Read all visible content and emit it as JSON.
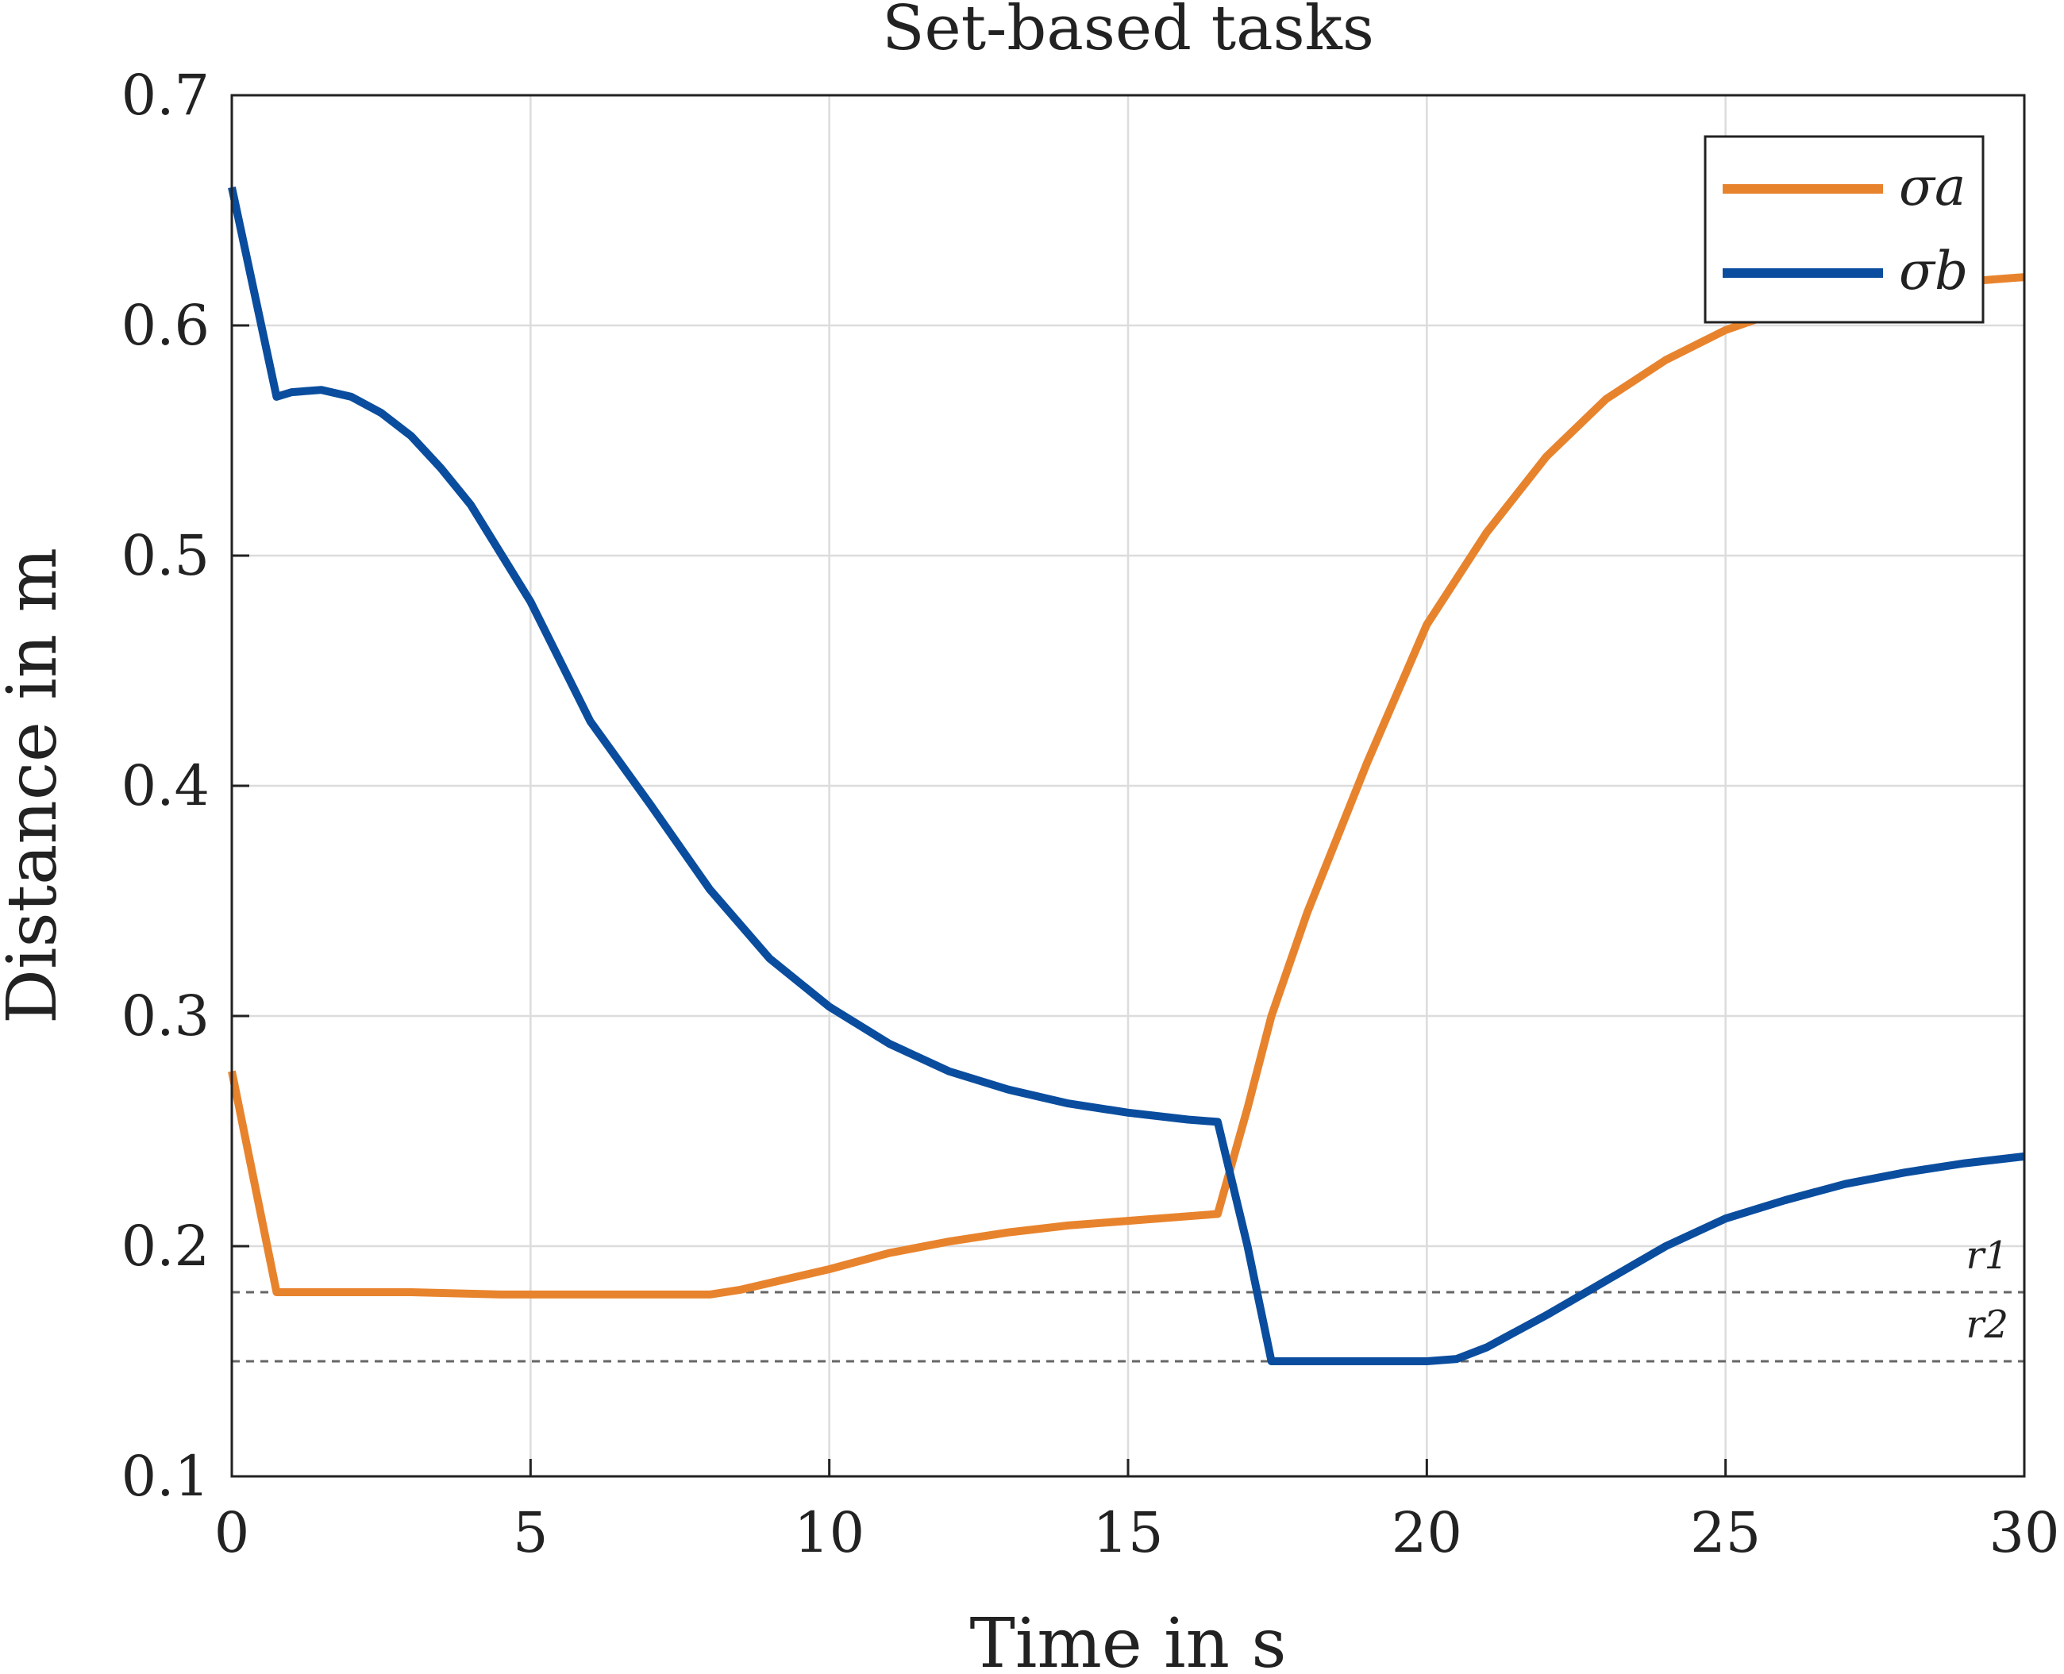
{
  "chart_data": {
    "type": "line",
    "title": "Set-based tasks",
    "xlabel": "Time in s",
    "ylabel": "Distance in m",
    "xlim": [
      0,
      30
    ],
    "ylim": [
      0.1,
      0.7
    ],
    "xticks": [
      0,
      5,
      10,
      15,
      20,
      25,
      30
    ],
    "yticks": [
      0.1,
      0.2,
      0.3,
      0.4,
      0.5,
      0.6,
      0.7
    ],
    "xtick_labels": [
      "0",
      "5",
      "10",
      "15",
      "20",
      "25",
      "30"
    ],
    "ytick_labels": [
      "0.1",
      "0.2",
      "0.3",
      "0.4",
      "0.5",
      "0.6",
      "0.7"
    ],
    "grid": true,
    "legend": {
      "placement": "top-right",
      "entries": [
        "σa",
        "σb"
      ]
    },
    "reference_lines": [
      {
        "label": "r1",
        "y": 0.18
      },
      {
        "label": "r2",
        "y": 0.15
      }
    ],
    "series": [
      {
        "name": "σa",
        "color": "#E8832D",
        "x": [
          0,
          0.75,
          1.5,
          3.0,
          4.5,
          6.0,
          7.0,
          8.0,
          8.5,
          9.0,
          10.0,
          11.0,
          12.0,
          13.0,
          14.0,
          15.0,
          16.0,
          16.5,
          17.0,
          17.4,
          18.0,
          19.0,
          20.0,
          21.0,
          22.0,
          23.0,
          24.0,
          25.0,
          26.0,
          27.0,
          28.0,
          29.0,
          30.0
        ],
        "y": [
          0.276,
          0.18,
          0.18,
          0.18,
          0.179,
          0.179,
          0.179,
          0.179,
          0.181,
          0.184,
          0.19,
          0.197,
          0.202,
          0.206,
          0.209,
          0.211,
          0.213,
          0.214,
          0.26,
          0.3,
          0.345,
          0.41,
          0.47,
          0.51,
          0.543,
          0.568,
          0.585,
          0.598,
          0.607,
          0.612,
          0.616,
          0.619,
          0.621
        ]
      },
      {
        "name": "σb",
        "color": "#0A4D9E",
        "x": [
          0,
          0.75,
          1.0,
          1.5,
          2.0,
          2.5,
          3.0,
          3.5,
          4.0,
          5.0,
          6.0,
          7.0,
          8.0,
          9.0,
          10.0,
          11.0,
          12.0,
          13.0,
          14.0,
          15.0,
          16.0,
          16.5,
          17.0,
          17.4,
          18.0,
          19.0,
          20.0,
          20.5,
          21.0,
          22.0,
          23.0,
          24.0,
          25.0,
          26.0,
          27.0,
          28.0,
          29.0,
          30.0
        ],
        "y": [
          0.66,
          0.569,
          0.571,
          0.572,
          0.569,
          0.562,
          0.552,
          0.538,
          0.522,
          0.48,
          0.428,
          0.392,
          0.355,
          0.325,
          0.304,
          0.288,
          0.276,
          0.268,
          0.262,
          0.258,
          0.255,
          0.254,
          0.2,
          0.15,
          0.15,
          0.15,
          0.15,
          0.151,
          0.156,
          0.17,
          0.185,
          0.2,
          0.212,
          0.22,
          0.227,
          0.232,
          0.236,
          0.239
        ]
      }
    ]
  }
}
